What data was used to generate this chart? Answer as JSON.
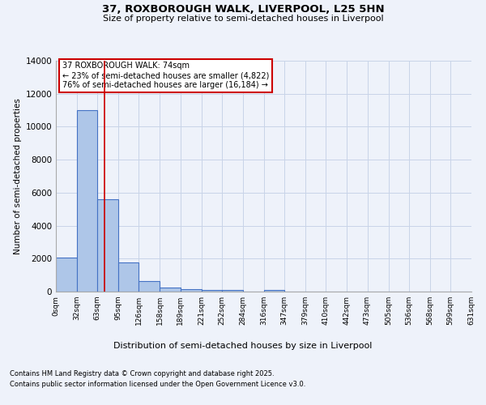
{
  "title1": "37, ROXBOROUGH WALK, LIVERPOOL, L25 5HN",
  "title2": "Size of property relative to semi-detached houses in Liverpool",
  "xlabel": "Distribution of semi-detached houses by size in Liverpool",
  "ylabel": "Number of semi-detached properties",
  "annotation_title": "37 ROXBOROUGH WALK: 74sqm",
  "annotation_line2": "← 23% of semi-detached houses are smaller (4,822)",
  "annotation_line3": "76% of semi-detached houses are larger (16,184) →",
  "footer1": "Contains HM Land Registry data © Crown copyright and database right 2025.",
  "footer2": "Contains public sector information licensed under the Open Government Licence v3.0.",
  "bin_labels": [
    "0sqm",
    "32sqm",
    "63sqm",
    "95sqm",
    "126sqm",
    "158sqm",
    "189sqm",
    "221sqm",
    "252sqm",
    "284sqm",
    "316sqm",
    "347sqm",
    "379sqm",
    "410sqm",
    "442sqm",
    "473sqm",
    "505sqm",
    "536sqm",
    "568sqm",
    "599sqm",
    "631sqm"
  ],
  "bar_values": [
    2050,
    11000,
    5600,
    1750,
    620,
    270,
    150,
    100,
    80,
    0,
    100,
    0,
    0,
    0,
    0,
    0,
    0,
    0,
    0,
    0
  ],
  "property_size": 74,
  "bar_color": "#aec6e8",
  "bar_edge_color": "#4472c4",
  "vline_color": "#cc0000",
  "vline_x": 74,
  "bin_edges": [
    0,
    32,
    63,
    95,
    126,
    158,
    189,
    221,
    252,
    284,
    316,
    347,
    379,
    410,
    442,
    473,
    505,
    536,
    568,
    599,
    631
  ],
  "ylim": [
    0,
    14000
  ],
  "background_color": "#eef2fa",
  "annotation_box_color": "#ffffff",
  "annotation_box_edge": "#cc0000",
  "grid_color": "#c8d4e8",
  "yticks": [
    0,
    2000,
    4000,
    6000,
    8000,
    10000,
    12000,
    14000
  ]
}
